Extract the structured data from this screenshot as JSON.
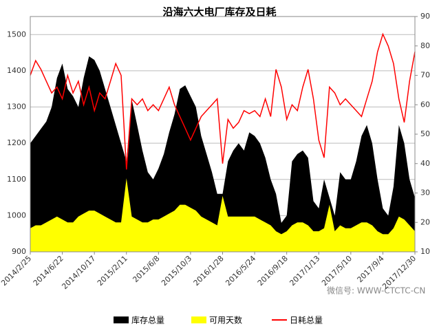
{
  "chart_data": {
    "type": "area-line",
    "title": "沿海六大电厂库存及日耗",
    "watermark": "微信号: WWW-CTCTC-CN",
    "categories": [
      "2014/2/25",
      null,
      null,
      null,
      null,
      null,
      "2014/6/22",
      null,
      null,
      null,
      null,
      null,
      "2014/10/17",
      null,
      null,
      null,
      null,
      null,
      "2015/2/11",
      null,
      null,
      null,
      null,
      null,
      "2015/6/8",
      null,
      null,
      null,
      null,
      null,
      "2015/10/3",
      null,
      null,
      null,
      null,
      null,
      "2016/1/28",
      null,
      null,
      null,
      null,
      null,
      "2016/5/24",
      null,
      null,
      null,
      null,
      null,
      "2016/9/18",
      null,
      null,
      null,
      null,
      null,
      "2017/1/13",
      null,
      null,
      null,
      null,
      null,
      "2017/5/10",
      null,
      null,
      null,
      null,
      null,
      "2017/9/4",
      null,
      null,
      null,
      null,
      null,
      "2017/12/30"
    ],
    "ylim": [
      900,
      1550
    ],
    "yticks": [
      900,
      1000,
      1100,
      1200,
      1300,
      1400,
      1500
    ],
    "y2lim": [
      10,
      90
    ],
    "y2ticks": [
      10,
      20,
      30,
      40,
      50,
      60,
      70,
      80,
      90
    ],
    "series": [
      {
        "name": "库存总量",
        "color": "#000000",
        "kind": "area",
        "values": [
          1200,
          1220,
          1240,
          1260,
          1300,
          1380,
          1420,
          1350,
          1330,
          1300,
          1380,
          1440,
          1430,
          1400,
          1350,
          1300,
          1250,
          1200,
          1150,
          1320,
          1250,
          1180,
          1120,
          1100,
          1130,
          1170,
          1230,
          1280,
          1350,
          1360,
          1330,
          1300,
          1220,
          1170,
          1120,
          1060,
          1060,
          1150,
          1180,
          1200,
          1180,
          1230,
          1220,
          1200,
          1160,
          1100,
          1060,
          980,
          1000,
          1150,
          1170,
          1180,
          1160,
          1040,
          1020,
          1100,
          1050,
          1000,
          1120,
          1100,
          1100,
          1150,
          1220,
          1250,
          1200,
          1100,
          1020,
          1000,
          1080,
          1250,
          1200,
          1100,
          1050
        ]
      },
      {
        "name": "可用天数",
        "color": "#ffff00",
        "kind": "area",
        "axis": "y2",
        "values": [
          18,
          19,
          19,
          20,
          21,
          22,
          21,
          20,
          20,
          22,
          23,
          24,
          24,
          23,
          22,
          21,
          20,
          20,
          35,
          22,
          21,
          20,
          20,
          21,
          21,
          22,
          23,
          24,
          26,
          26,
          25,
          24,
          22,
          21,
          20,
          19,
          29,
          22,
          22,
          22,
          22,
          22,
          22,
          21,
          20,
          19,
          17,
          16,
          17,
          19,
          20,
          20,
          19,
          17,
          17,
          18,
          26,
          17,
          19,
          18,
          18,
          19,
          20,
          20,
          19,
          17,
          16,
          16,
          18,
          22,
          21,
          19,
          17
        ]
      },
      {
        "name": "日耗总量",
        "color": "#ff0000",
        "kind": "line",
        "axis": "y2",
        "values": [
          70,
          75,
          72,
          68,
          64,
          66,
          62,
          70,
          64,
          68,
          60,
          66,
          58,
          64,
          62,
          68,
          74,
          70,
          38,
          62,
          60,
          62,
          58,
          60,
          58,
          62,
          66,
          60,
          56,
          52,
          48,
          52,
          56,
          58,
          60,
          62,
          40,
          55,
          52,
          54,
          58,
          57,
          58,
          56,
          62,
          56,
          72,
          66,
          55,
          60,
          58,
          66,
          72,
          62,
          48,
          42,
          66,
          64,
          60,
          62,
          60,
          58,
          56,
          62,
          68,
          78,
          84,
          80,
          74,
          62,
          54,
          68,
          78
        ]
      }
    ]
  }
}
